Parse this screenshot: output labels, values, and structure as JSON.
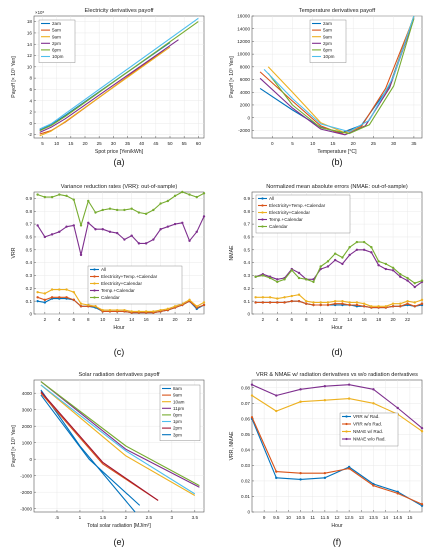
{
  "chart_data": [
    {
      "type": "line",
      "title": "Electricity derivatives payoff",
      "xlabel": "Spot price [Yen/kWh]",
      "ylabel": "Payoff [× 10⁵ Yen]",
      "y_multiplier": "×10⁵",
      "xlim": [
        2,
        62
      ],
      "ylim": [
        -2.6,
        19
      ],
      "xticks": [
        5,
        10,
        15,
        20,
        25,
        30,
        35,
        40,
        45,
        50,
        55,
        60
      ],
      "yticks": [
        -2,
        0,
        2,
        4,
        6,
        8,
        10,
        12,
        14,
        16,
        18
      ],
      "legend": "top-left",
      "caption": "(a)",
      "series": [
        {
          "name": "2am",
          "color": "#0072bd",
          "points": [
            [
              4,
              -1.2
            ],
            [
              8,
              -0.3
            ],
            [
              13,
              1.4
            ],
            [
              50,
              14.3
            ]
          ]
        },
        {
          "name": "5am",
          "color": "#d95319",
          "points": [
            [
              4,
              -1.9
            ],
            [
              8,
              -1.3
            ],
            [
              13,
              0.2
            ],
            [
              48,
              13.0
            ]
          ]
        },
        {
          "name": "9am",
          "color": "#edb120",
          "points": [
            [
              4,
              -2.2
            ],
            [
              8,
              -1.4
            ],
            [
              13,
              0.3
            ],
            [
              50,
              13.5
            ]
          ]
        },
        {
          "name": "2pm",
          "color": "#7e2f8e",
          "points": [
            [
              4,
              -1.6
            ],
            [
              8,
              -0.7
            ],
            [
              13,
              0.8
            ],
            [
              53,
              14.8
            ]
          ]
        },
        {
          "name": "6pm",
          "color": "#77ac30",
          "points": [
            [
              4,
              -1.3
            ],
            [
              8,
              -0.4
            ],
            [
              13,
              1.2
            ],
            [
              60,
              18.0
            ]
          ]
        },
        {
          "name": "10pm",
          "color": "#4dbeee",
          "points": [
            [
              4,
              -1.0
            ],
            [
              8,
              -0.1
            ],
            [
              13,
              1.7
            ],
            [
              60,
              18.6
            ]
          ]
        }
      ]
    },
    {
      "type": "line",
      "title": "Temperature derivatives payoff",
      "xlabel": "Temperature [°C]",
      "ylabel": "Payoff [× 10⁵ Yen]",
      "xlim": [
        -5,
        37
      ],
      "ylim": [
        -3200,
        16000
      ],
      "xticks": [
        0,
        5,
        10,
        15,
        20,
        25,
        30,
        35
      ],
      "yticks": [
        -2000,
        0,
        2000,
        4000,
        6000,
        8000,
        10000,
        12000,
        14000,
        16000
      ],
      "legend": "top-center",
      "caption": "(b)",
      "series": [
        {
          "name": "2am",
          "color": "#0072bd",
          "points": [
            [
              -3,
              4600
            ],
            [
              5,
              1200
            ],
            [
              12,
              -1500
            ],
            [
              17,
              -2400
            ],
            [
              22,
              -1200
            ],
            [
              29,
              5000
            ],
            [
              35,
              16000
            ]
          ]
        },
        {
          "name": "5am",
          "color": "#d95319",
          "points": [
            [
              -3,
              7200
            ],
            [
              5,
              2600
            ],
            [
              12,
              -1300
            ],
            [
              17,
              -2500
            ],
            [
              22,
              -1400
            ],
            [
              28,
              4600
            ],
            [
              35,
              15800
            ]
          ]
        },
        {
          "name": "9am",
          "color": "#edb120",
          "points": [
            [
              -1,
              8000
            ],
            [
              5,
              4000
            ],
            [
              12,
              -800
            ],
            [
              18,
              -2400
            ],
            [
              23,
              -1300
            ],
            [
              29,
              4800
            ],
            [
              35,
              16000
            ]
          ]
        },
        {
          "name": "2pm",
          "color": "#7e2f8e",
          "points": [
            [
              -3,
              6200
            ],
            [
              5,
              1500
            ],
            [
              12,
              -1800
            ],
            [
              18,
              -2700
            ],
            [
              23,
              -1300
            ],
            [
              29,
              4700
            ],
            [
              35,
              15600
            ]
          ]
        },
        {
          "name": "6pm",
          "color": "#77ac30",
          "points": [
            [
              -1,
              7000
            ],
            [
              5,
              2000
            ],
            [
              12,
              -1600
            ],
            [
              19,
              -2500
            ],
            [
              24,
              -1100
            ],
            [
              30,
              5000
            ],
            [
              35,
              15600
            ]
          ]
        },
        {
          "name": "10pm",
          "color": "#4dbeee",
          "points": [
            [
              -2,
              7600
            ],
            [
              5,
              3000
            ],
            [
              12,
              -1000
            ],
            [
              19,
              -2200
            ],
            [
              24,
              -400
            ],
            [
              30,
              6500
            ],
            [
              35,
              16000
            ]
          ]
        }
      ]
    },
    {
      "type": "line",
      "title": "Variance reduction rates (VRR): out-of-sample)",
      "xlabel": "Hour",
      "ylabel": "VRR",
      "xlim": [
        0.5,
        24
      ],
      "ylim": [
        0,
        0.95
      ],
      "xticks": [
        2,
        4,
        6,
        8,
        10,
        12,
        14,
        16,
        18,
        20,
        22
      ],
      "yticks": [
        0,
        0.1,
        0.2,
        0.3,
        0.4,
        0.5,
        0.6,
        0.7,
        0.8,
        0.9
      ],
      "legend": "lower-center",
      "caption": "(c)",
      "x": [
        1,
        2,
        3,
        4,
        5,
        6,
        7,
        8,
        9,
        10,
        11,
        12,
        13,
        14,
        15,
        16,
        17,
        18,
        19,
        20,
        21,
        22,
        23,
        24
      ],
      "series": [
        {
          "name": "All",
          "color": "#0072bd",
          "values": [
            0.1,
            0.09,
            0.12,
            0.12,
            0.12,
            0.11,
            0.06,
            0.06,
            0.05,
            0.02,
            0.02,
            0.02,
            0.02,
            0.01,
            0.01,
            0.01,
            0.01,
            0.02,
            0.03,
            0.05,
            0.07,
            0.1,
            0.04,
            0.07
          ]
        },
        {
          "name": "Electricity+Temp.+Calendar",
          "color": "#d95319",
          "values": [
            0.13,
            0.11,
            0.13,
            0.13,
            0.13,
            0.11,
            0.06,
            0.06,
            0.06,
            0.02,
            0.02,
            0.02,
            0.02,
            0.01,
            0.01,
            0.01,
            0.01,
            0.02,
            0.03,
            0.05,
            0.07,
            0.1,
            0.05,
            0.07
          ]
        },
        {
          "name": "Electricity+Calendar",
          "color": "#edb120",
          "values": [
            0.17,
            0.16,
            0.19,
            0.19,
            0.19,
            0.17,
            0.08,
            0.07,
            0.06,
            0.03,
            0.03,
            0.03,
            0.03,
            0.02,
            0.02,
            0.02,
            0.02,
            0.03,
            0.04,
            0.06,
            0.08,
            0.11,
            0.06,
            0.09
          ]
        },
        {
          "name": "Temp.+Calendar",
          "color": "#7e2f8e",
          "values": [
            0.69,
            0.6,
            0.62,
            0.64,
            0.68,
            0.69,
            0.46,
            0.71,
            0.66,
            0.66,
            0.64,
            0.63,
            0.58,
            0.61,
            0.55,
            0.55,
            0.58,
            0.66,
            0.68,
            0.7,
            0.71,
            0.57,
            0.64,
            0.76
          ]
        },
        {
          "name": "Calendar",
          "color": "#77ac30",
          "values": [
            0.93,
            0.91,
            0.91,
            0.93,
            0.92,
            0.89,
            0.69,
            0.88,
            0.79,
            0.81,
            0.82,
            0.81,
            0.81,
            0.82,
            0.79,
            0.78,
            0.81,
            0.86,
            0.88,
            0.92,
            0.95,
            0.93,
            0.91,
            0.94
          ]
        }
      ]
    },
    {
      "type": "line",
      "title": "Normalized mean absolute errors (NMAE: out-of-sample)",
      "xlabel": "Hour",
      "ylabel": "NMAE",
      "xlim": [
        0.5,
        24
      ],
      "ylim": [
        0,
        0.95
      ],
      "xticks": [
        2,
        4,
        6,
        8,
        10,
        12,
        14,
        16,
        18,
        20,
        22
      ],
      "yticks": [
        0,
        0.1,
        0.2,
        0.3,
        0.4,
        0.5,
        0.6,
        0.7,
        0.8,
        0.9
      ],
      "legend": "top-left",
      "caption": "(d)",
      "x": [
        1,
        2,
        3,
        4,
        5,
        6,
        7,
        8,
        9,
        10,
        11,
        12,
        13,
        14,
        15,
        16,
        17,
        18,
        19,
        20,
        21,
        22,
        23,
        24
      ],
      "series": [
        {
          "name": "All",
          "color": "#0072bd",
          "values": [
            0.09,
            0.09,
            0.09,
            0.09,
            0.09,
            0.1,
            0.1,
            0.08,
            0.07,
            0.07,
            0.07,
            0.07,
            0.07,
            0.07,
            0.06,
            0.06,
            0.05,
            0.05,
            0.05,
            0.06,
            0.06,
            0.07,
            0.06,
            0.07
          ]
        },
        {
          "name": "Electricity+Temp.+Calendar",
          "color": "#d95319",
          "values": [
            0.09,
            0.09,
            0.09,
            0.09,
            0.09,
            0.1,
            0.1,
            0.08,
            0.07,
            0.07,
            0.07,
            0.08,
            0.08,
            0.07,
            0.07,
            0.06,
            0.05,
            0.05,
            0.05,
            0.06,
            0.06,
            0.08,
            0.06,
            0.08
          ]
        },
        {
          "name": "Electricity+Calendar",
          "color": "#edb120",
          "values": [
            0.13,
            0.13,
            0.13,
            0.12,
            0.13,
            0.14,
            0.15,
            0.1,
            0.09,
            0.09,
            0.09,
            0.1,
            0.1,
            0.09,
            0.09,
            0.08,
            0.06,
            0.06,
            0.06,
            0.08,
            0.08,
            0.1,
            0.09,
            0.11
          ]
        },
        {
          "name": "Temp.+Calendar",
          "color": "#7e2f8e",
          "values": [
            0.29,
            0.31,
            0.29,
            0.27,
            0.28,
            0.35,
            0.32,
            0.27,
            0.27,
            0.35,
            0.37,
            0.42,
            0.39,
            0.46,
            0.5,
            0.5,
            0.48,
            0.38,
            0.35,
            0.34,
            0.29,
            0.26,
            0.21,
            0.25
          ]
        },
        {
          "name": "Calendar",
          "color": "#77ac30",
          "values": [
            0.29,
            0.3,
            0.28,
            0.25,
            0.27,
            0.34,
            0.28,
            0.27,
            0.25,
            0.37,
            0.41,
            0.47,
            0.44,
            0.52,
            0.56,
            0.56,
            0.52,
            0.41,
            0.39,
            0.36,
            0.31,
            0.28,
            0.24,
            0.26
          ]
        }
      ]
    },
    {
      "type": "line",
      "title": "Solar radiation derivatives payoff",
      "xlabel": "Total solar radiation [MJ/m²]",
      "ylabel": "Payoff [× 10⁵ Yen]",
      "xlim": [
        0,
        3.7
      ],
      "ylim": [
        -3200,
        4800
      ],
      "xticks": [
        0.5,
        1,
        1.5,
        2,
        2.5,
        3,
        3.5
      ],
      "xtick_labels": [
        ".5",
        "1",
        "1.5",
        "2",
        "2.5",
        "3",
        "3.5"
      ],
      "yticks": [
        -3000,
        -2000,
        -1000,
        0,
        1000,
        2000,
        3000,
        4000
      ],
      "legend": "top-right",
      "caption": "(e)",
      "series": [
        {
          "name": "8am",
          "color": "#0072bd",
          "points": [
            [
              0.15,
              4200
            ],
            [
              1.0,
              800
            ],
            [
              2.2,
              -3200
            ]
          ]
        },
        {
          "name": "9am",
          "color": "#d95319",
          "points": [
            [
              0.15,
              4000
            ],
            [
              1.5,
              -300
            ],
            [
              2.7,
              -2500
            ]
          ]
        },
        {
          "name": "10am",
          "color": "#edb120",
          "points": [
            [
              0.15,
              4500
            ],
            [
              2.0,
              200
            ],
            [
              3.5,
              -2200
            ]
          ]
        },
        {
          "name": "11pm",
          "color": "#7e2f8e",
          "points": [
            [
              0.15,
              4700
            ],
            [
              2.0,
              600
            ],
            [
              3.6,
              -1700
            ]
          ]
        },
        {
          "name": "0pm",
          "color": "#77ac30",
          "points": [
            [
              0.15,
              4700
            ],
            [
              2.0,
              800
            ],
            [
              3.6,
              -1600
            ]
          ]
        },
        {
          "name": "1pm",
          "color": "#4dbeee",
          "points": [
            [
              0.15,
              4500
            ],
            [
              2.0,
              500
            ],
            [
              3.5,
              -2100
            ]
          ]
        },
        {
          "name": "2pm",
          "color": "#a2142f",
          "points": [
            [
              0.15,
              4100
            ],
            [
              1.5,
              -200
            ],
            [
              2.7,
              -2500
            ]
          ]
        },
        {
          "name": "3pm",
          "color": "#0072bd",
          "points": [
            [
              0.15,
              3900
            ],
            [
              1.2,
              0
            ],
            [
              2.3,
              -2800
            ]
          ]
        }
      ]
    },
    {
      "type": "line",
      "title": "VRR & NMAE w/ radiation derivatives vs w/o radiation derivatives",
      "xlabel": "Hour",
      "ylabel": "VRR, NMAE",
      "xlim": [
        8.5,
        15.5
      ],
      "ylim": [
        0,
        0.085
      ],
      "xticks": [
        9,
        9.5,
        10,
        10.5,
        11,
        11.5,
        12,
        12.5,
        13,
        13.5,
        14,
        14.5,
        15
      ],
      "yticks": [
        0,
        0.01,
        0.02,
        0.03,
        0.04,
        0.05,
        0.06,
        0.07,
        0.08
      ],
      "legend": "center-right",
      "caption": "(f)",
      "x": [
        8.5,
        9.5,
        10.5,
        11.5,
        12.5,
        13.5,
        14.5,
        15.5
      ],
      "series": [
        {
          "name": "VRR w/ Rad.",
          "color": "#0072bd",
          "values": [
            0.06,
            0.022,
            0.021,
            0.022,
            0.029,
            0.018,
            0.013,
            0.004
          ]
        },
        {
          "name": "VRR w/o Rad.",
          "color": "#d95319",
          "values": [
            0.061,
            0.026,
            0.025,
            0.025,
            0.028,
            0.017,
            0.012,
            0.005
          ]
        },
        {
          "name": "NMAE w/ Rad.",
          "color": "#edb120",
          "values": [
            0.075,
            0.065,
            0.071,
            0.072,
            0.073,
            0.07,
            0.063,
            0.052
          ]
        },
        {
          "name": "NMAE w/o Rad.",
          "color": "#7e2f8e",
          "values": [
            0.082,
            0.075,
            0.079,
            0.081,
            0.082,
            0.079,
            0.067,
            0.054
          ]
        }
      ]
    }
  ]
}
